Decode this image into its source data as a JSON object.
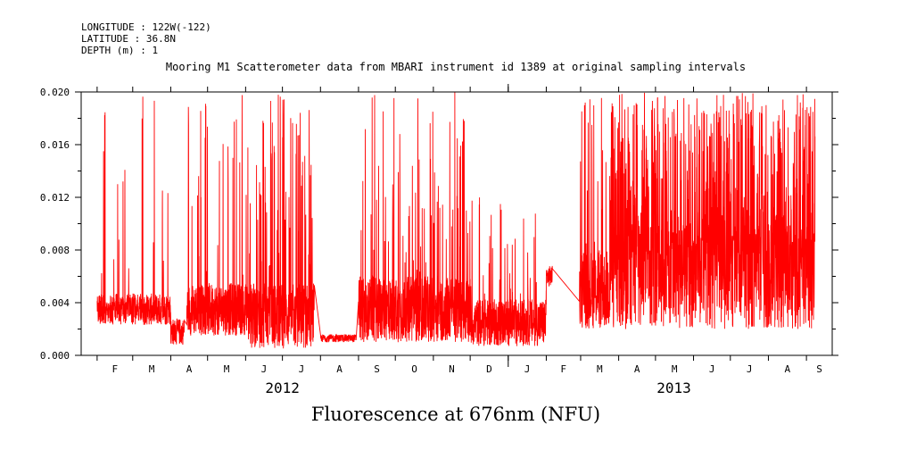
{
  "header": {
    "longitude": "LONGITUDE : 122W(-122)",
    "latitude": "LATITUDE : 36.8N",
    "depth": "DEPTH (m) : 1"
  },
  "chart_data": {
    "type": "line",
    "title": "Mooring M1 Scatterometer data from MBARI instrument id 1389 at original sampling intervals",
    "ylabel": "Fluorescence at 676nm (NFU)",
    "xlabel": "",
    "ylim": [
      0,
      0.02
    ],
    "yticks": [
      "0.000",
      "0.004",
      "0.008",
      "0.012",
      "0.016",
      "0.020"
    ],
    "xlim": [
      "2012-01-19",
      "2013-09-22"
    ],
    "months": [
      "F",
      "M",
      "A",
      "M",
      "J",
      "J",
      "A",
      "S",
      "O",
      "N",
      "D",
      "J",
      "F",
      "M",
      "A",
      "M",
      "J",
      "J",
      "A",
      "S"
    ],
    "month_dates": [
      "2012-02-01",
      "2012-03-01",
      "2012-04-01",
      "2012-05-01",
      "2012-06-01",
      "2012-07-01",
      "2012-08-01",
      "2012-09-01",
      "2012-10-01",
      "2012-11-01",
      "2012-12-01",
      "2013-01-01",
      "2013-02-01",
      "2013-03-01",
      "2013-04-01",
      "2013-05-01",
      "2013-06-01",
      "2013-07-01",
      "2013-08-01",
      "2013-09-01"
    ],
    "years": [
      {
        "label": "2012",
        "date": "2012-07-01"
      },
      {
        "label": "2013",
        "date": "2013-05-16"
      }
    ],
    "grid": false,
    "color": "#ff0000",
    "series": [
      {
        "segments": [
          {
            "start": "2012-02-01",
            "end": "2012-04-01",
            "base": 0.0035,
            "spread": 0.0012,
            "spikes": 0.05,
            "spike_max": 0.02
          },
          {
            "start": "2012-04-01",
            "end": "2012-04-12",
            "base": 0.0018,
            "spread": 0.001,
            "spikes": 0.03,
            "spike_max": 0.004
          },
          {
            "start": "2012-04-14",
            "end": "2012-06-01",
            "base": 0.0035,
            "spread": 0.002,
            "spikes": 0.08,
            "spike_max": 0.02
          },
          {
            "start": "2012-06-01",
            "end": "2012-07-27",
            "base": 0.003,
            "spread": 0.0025,
            "spikes": 0.15,
            "spike_max": 0.02
          },
          {
            "start": "2012-08-01",
            "end": "2012-08-30",
            "base": 0.0013,
            "spread": 0.0003,
            "spikes": 0.0,
            "spike_max": 0.002
          },
          {
            "start": "2012-09-01",
            "end": "2012-12-01",
            "base": 0.0035,
            "spread": 0.0025,
            "spikes": 0.12,
            "spike_max": 0.02
          },
          {
            "start": "2012-12-01",
            "end": "2013-02-01",
            "base": 0.0025,
            "spread": 0.0018,
            "spikes": 0.05,
            "spike_max": 0.012
          },
          {
            "start": "2013-02-01",
            "end": "2013-02-06",
            "base": 0.006,
            "spread": 0.0008,
            "spikes": 0.0,
            "spike_max": 0.007
          },
          {
            "start": "2013-02-28",
            "end": "2013-03-25",
            "base": 0.005,
            "spread": 0.003,
            "spikes": 0.1,
            "spike_max": 0.02
          },
          {
            "start": "2013-03-25",
            "end": "2013-09-08",
            "base": 0.006,
            "spread": 0.004,
            "spikes": 0.35,
            "spike_max": 0.02
          }
        ]
      }
    ]
  }
}
